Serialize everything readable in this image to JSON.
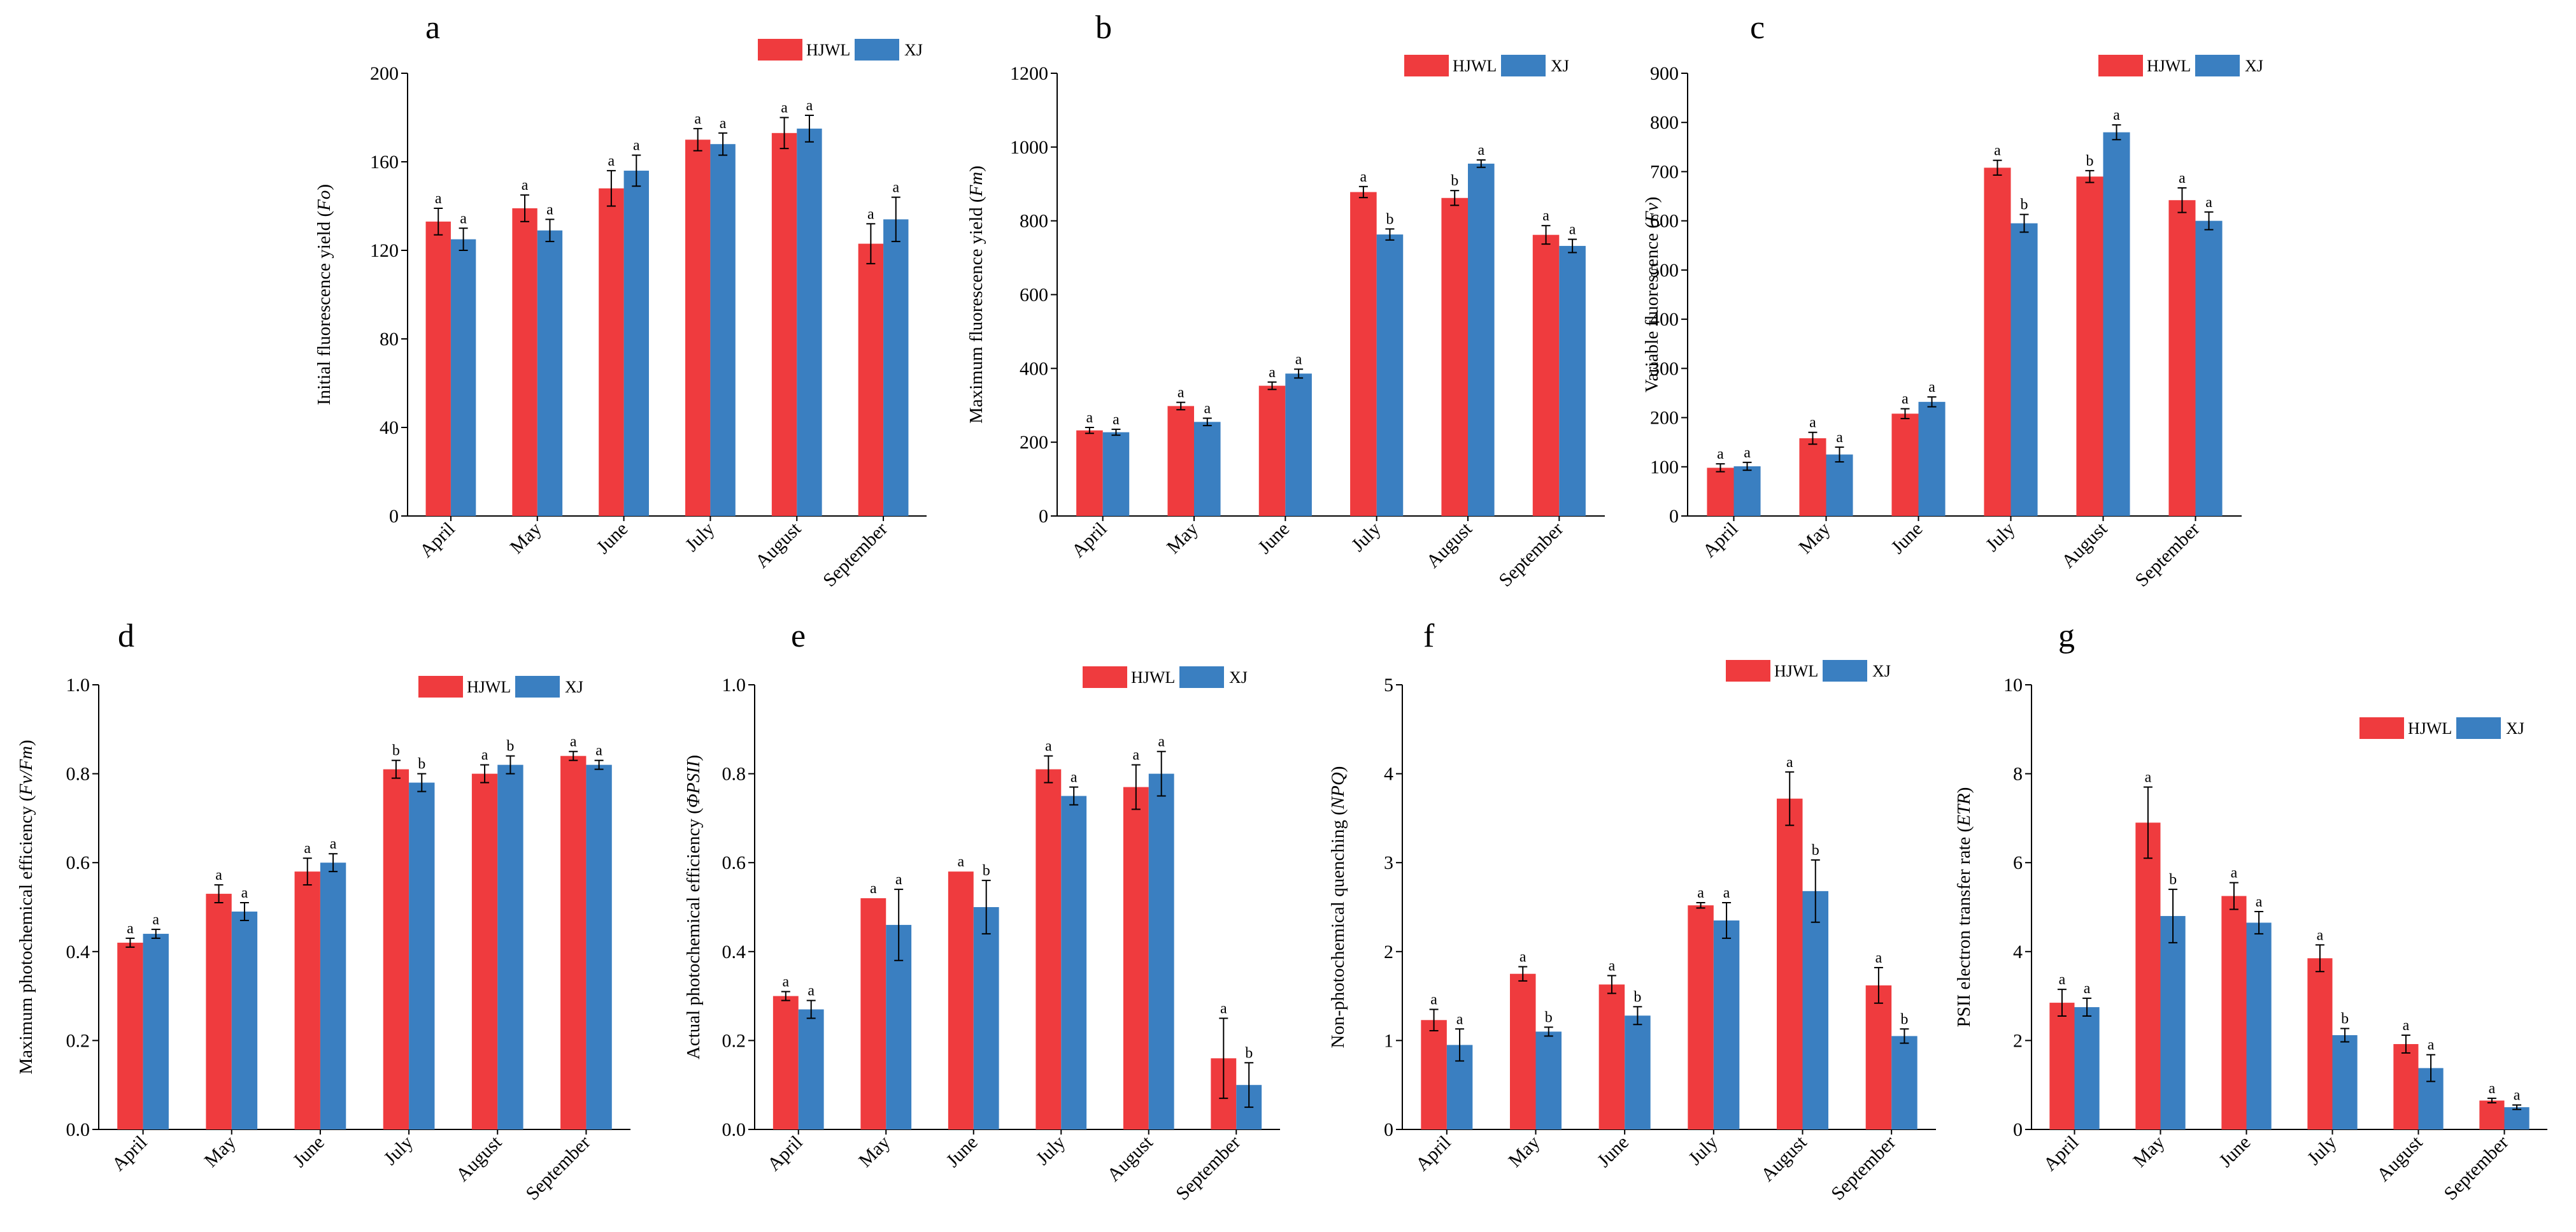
{
  "chart_data": [
    {
      "panel": "a",
      "type": "bar",
      "ylabel": "Initial fluorescence yield (Fo)",
      "ylabel_italic": "Fo",
      "ylim": [
        0,
        200
      ],
      "yticks": [
        "0",
        "40",
        "80",
        "120",
        "160",
        "200"
      ],
      "categories": [
        "April",
        "May",
        "June",
        "July",
        "August",
        "September"
      ],
      "series": [
        {
          "name": "HJWL",
          "color": "#ef3b3e",
          "values": [
            133,
            139,
            148,
            170,
            173,
            123
          ],
          "errors": [
            6,
            6,
            8,
            5,
            7,
            9
          ],
          "letters": [
            "a",
            "a",
            "a",
            "a",
            "a",
            "a"
          ]
        },
        {
          "name": "XJ",
          "color": "#3a7fc1",
          "values": [
            125,
            129,
            156,
            168,
            175,
            134
          ],
          "errors": [
            5,
            5,
            7,
            5,
            6,
            10
          ],
          "letters": [
            "a",
            "a",
            "a",
            "a",
            "a",
            "a"
          ]
        }
      ]
    },
    {
      "panel": "b",
      "type": "bar",
      "ylabel": "Maximum fluorescence yield (Fm)",
      "ylabel_italic": "Fm",
      "ylim": [
        0,
        1200
      ],
      "yticks": [
        "0",
        "200",
        "400",
        "600",
        "800",
        "1000",
        "1200"
      ],
      "categories": [
        "April",
        "May",
        "June",
        "July",
        "August",
        "September"
      ],
      "series": [
        {
          "name": "HJWL",
          "color": "#ef3b3e",
          "values": [
            232,
            298,
            353,
            878,
            862,
            762
          ],
          "errors": [
            8,
            10,
            10,
            15,
            20,
            25
          ],
          "letters": [
            "a",
            "a",
            "a",
            "a",
            "b",
            "a"
          ]
        },
        {
          "name": "XJ",
          "color": "#3a7fc1",
          "values": [
            227,
            255,
            386,
            763,
            955,
            732
          ],
          "errors": [
            8,
            10,
            12,
            15,
            10,
            18
          ],
          "letters": [
            "a",
            "a",
            "a",
            "b",
            "a",
            "a"
          ]
        }
      ]
    },
    {
      "panel": "c",
      "type": "bar",
      "ylabel": "Variable fluorescence (Fv)",
      "ylabel_italic": "Fv",
      "ylim": [
        0,
        900
      ],
      "yticks": [
        "0",
        "100",
        "200",
        "300",
        "400",
        "500",
        "600",
        "700",
        "800",
        "900"
      ],
      "categories": [
        "April",
        "May",
        "June",
        "July",
        "August",
        "September"
      ],
      "series": [
        {
          "name": "HJWL",
          "color": "#ef3b3e",
          "values": [
            98,
            158,
            208,
            708,
            690,
            642
          ],
          "errors": [
            8,
            12,
            10,
            15,
            12,
            25
          ],
          "letters": [
            "a",
            "a",
            "a",
            "a",
            "b",
            "a"
          ]
        },
        {
          "name": "XJ",
          "color": "#3a7fc1",
          "values": [
            101,
            125,
            232,
            595,
            780,
            600
          ],
          "errors": [
            8,
            15,
            10,
            18,
            15,
            18
          ],
          "letters": [
            "a",
            "a",
            "a",
            "b",
            "a",
            "a"
          ]
        }
      ]
    },
    {
      "panel": "d",
      "type": "bar",
      "ylabel": "Maximum photochemical efficiency (Fv/Fm)",
      "ylabel_italic": "Fv/Fm",
      "ylim": [
        0,
        1.0
      ],
      "yticks": [
        "0.0",
        "0.2",
        "0.4",
        "0.6",
        "0.8",
        "1.0"
      ],
      "categories": [
        "April",
        "May",
        "June",
        "July",
        "August",
        "September"
      ],
      "series": [
        {
          "name": "HJWL",
          "color": "#ef3b3e",
          "values": [
            0.42,
            0.53,
            0.58,
            0.81,
            0.8,
            0.84
          ],
          "errors": [
            0.01,
            0.02,
            0.03,
            0.02,
            0.02,
            0.01
          ],
          "letters": [
            "a",
            "a",
            "a",
            "b",
            "a",
            "a"
          ]
        },
        {
          "name": "XJ",
          "color": "#3a7fc1",
          "values": [
            0.44,
            0.49,
            0.6,
            0.78,
            0.82,
            0.82
          ],
          "errors": [
            0.01,
            0.02,
            0.02,
            0.02,
            0.02,
            0.01
          ],
          "letters": [
            "a",
            "a",
            "a",
            "b",
            "b",
            "a"
          ]
        }
      ]
    },
    {
      "panel": "e",
      "type": "bar",
      "ylabel": "Actual photochemical efficiency (ΦPSII)",
      "ylabel_italic": "ΦPSII",
      "ylim": [
        0,
        1.0
      ],
      "yticks": [
        "0.0",
        "0.2",
        "0.4",
        "0.6",
        "0.8",
        "1.0"
      ],
      "categories": [
        "April",
        "May",
        "June",
        "July",
        "August",
        "September"
      ],
      "series": [
        {
          "name": "HJWL",
          "color": "#ef3b3e",
          "values": [
            0.3,
            0.52,
            0.58,
            0.81,
            0.77,
            0.16
          ],
          "errors": [
            0.01,
            0.0,
            0.0,
            0.03,
            0.05,
            0.09
          ],
          "letters": [
            "a",
            "a",
            "a",
            "a",
            "a",
            "a"
          ]
        },
        {
          "name": "XJ",
          "color": "#3a7fc1",
          "values": [
            0.27,
            0.46,
            0.5,
            0.75,
            0.8,
            0.1
          ],
          "errors": [
            0.02,
            0.08,
            0.06,
            0.02,
            0.05,
            0.05
          ],
          "letters": [
            "a",
            "a",
            "b",
            "a",
            "a",
            "b"
          ]
        }
      ]
    },
    {
      "panel": "f",
      "type": "bar",
      "ylabel": "Non-photochemical quenching (NPQ)",
      "ylabel_italic": "NPQ",
      "ylim": [
        0,
        5
      ],
      "yticks": [
        "0",
        "1",
        "2",
        "3",
        "4",
        "5"
      ],
      "categories": [
        "April",
        "May",
        "June",
        "July",
        "August",
        "September"
      ],
      "series": [
        {
          "name": "HJWL",
          "color": "#ef3b3e",
          "values": [
            1.23,
            1.75,
            1.63,
            2.52,
            3.72,
            1.62
          ],
          "errors": [
            0.12,
            0.08,
            0.1,
            0.03,
            0.3,
            0.2
          ],
          "letters": [
            "a",
            "a",
            "a",
            "a",
            "a",
            "a"
          ]
        },
        {
          "name": "XJ",
          "color": "#3a7fc1",
          "values": [
            0.95,
            1.1,
            1.28,
            2.35,
            2.68,
            1.05
          ],
          "errors": [
            0.18,
            0.05,
            0.1,
            0.2,
            0.35,
            0.08
          ],
          "letters": [
            "a",
            "b",
            "b",
            "a",
            "b",
            "b"
          ]
        }
      ]
    },
    {
      "panel": "g",
      "type": "bar",
      "ylabel": "PSII electron transfer rate (ETR)",
      "ylabel_italic": "ETR",
      "ylim": [
        0,
        10
      ],
      "yticks": [
        "0",
        "2",
        "4",
        "6",
        "8",
        "10"
      ],
      "categories": [
        "April",
        "May",
        "June",
        "July",
        "August",
        "September"
      ],
      "series": [
        {
          "name": "HJWL",
          "color": "#ef3b3e",
          "values": [
            2.85,
            6.9,
            5.25,
            3.85,
            1.92,
            0.65
          ],
          "errors": [
            0.3,
            0.8,
            0.3,
            0.3,
            0.2,
            0.05
          ],
          "letters": [
            "a",
            "a",
            "a",
            "a",
            "a",
            "a"
          ]
        },
        {
          "name": "XJ",
          "color": "#3a7fc1",
          "values": [
            2.75,
            4.8,
            4.65,
            2.12,
            1.38,
            0.5
          ],
          "errors": [
            0.2,
            0.6,
            0.25,
            0.15,
            0.3,
            0.05
          ],
          "letters": [
            "a",
            "b",
            "a",
            "b",
            "a",
            "a"
          ]
        }
      ]
    }
  ]
}
